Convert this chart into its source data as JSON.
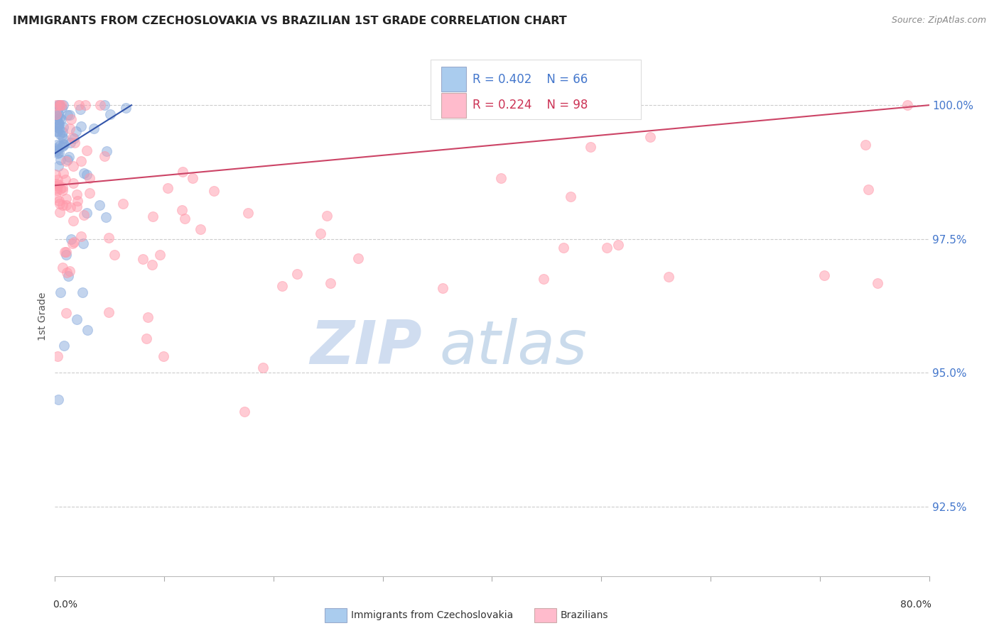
{
  "title": "IMMIGRANTS FROM CZECHOSLOVAKIA VS BRAZILIAN 1ST GRADE CORRELATION CHART",
  "source": "Source: ZipAtlas.com",
  "ylabel": "1st Grade",
  "legend_blue_r": "R = 0.402",
  "legend_blue_n": "N = 66",
  "legend_pink_r": "R = 0.224",
  "legend_pink_n": "N = 98",
  "blue_color": "#88AADD",
  "pink_color": "#FF99AA",
  "blue_line_color": "#3355AA",
  "pink_line_color": "#CC4466",
  "blue_legend_color": "#AACCEE",
  "pink_legend_color": "#FFBBCC",
  "right_tick_color": "#4477CC",
  "grid_color": "#CCCCCC",
  "background_color": "#FFFFFF",
  "xlim_min": 0.0,
  "xlim_max": 80.0,
  "ylim_min": 91.2,
  "ylim_max": 100.9,
  "yticks": [
    92.5,
    95.0,
    97.5,
    100.0
  ],
  "xticks": [
    0,
    10,
    20,
    30,
    40,
    50,
    60,
    70,
    80
  ],
  "watermark_zip_color": "#C8D8EE",
  "watermark_atlas_color": "#A8C4E0"
}
